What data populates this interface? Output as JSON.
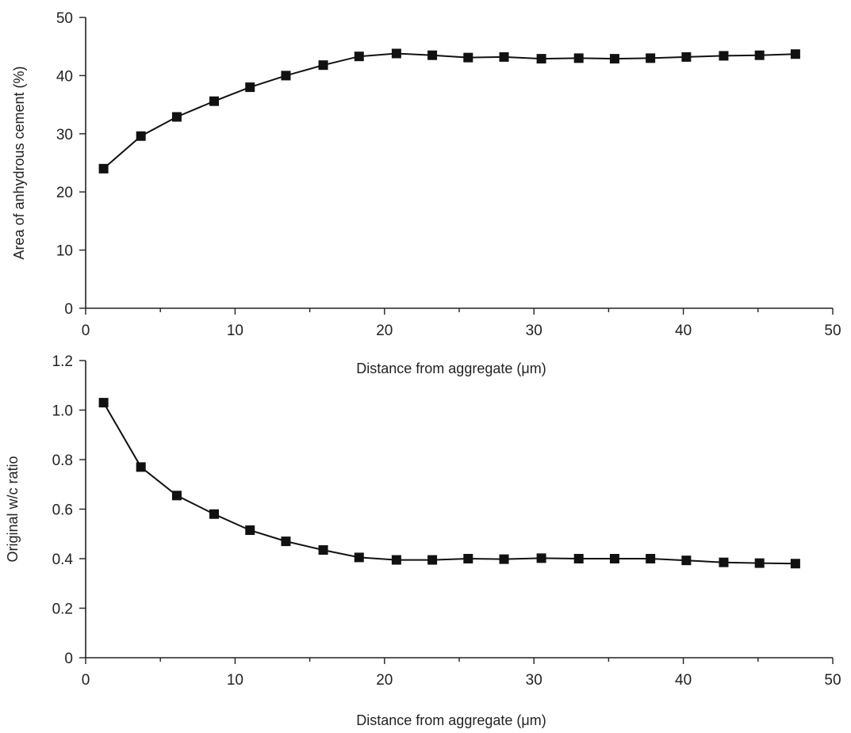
{
  "chart_data": [
    {
      "type": "line",
      "xlabel": "Distance from aggregate (μm)",
      "ylabel": "Area of anhydrous cement (%)",
      "xlim": [
        0,
        50
      ],
      "ylim": [
        0,
        50
      ],
      "xticks": [
        "0",
        "10",
        "20",
        "30",
        "40",
        "50"
      ],
      "yticks": [
        "0",
        "10",
        "20",
        "30",
        "40",
        "50"
      ],
      "grid": false,
      "marker": "square",
      "series": [
        {
          "x": [
            1.2,
            3.7,
            6.1,
            8.6,
            11.0,
            13.4,
            15.9,
            18.3,
            20.8,
            23.2,
            25.6,
            28.0,
            30.5,
            33.0,
            35.4,
            37.8,
            40.2,
            42.7,
            45.1,
            47.5
          ],
          "y": [
            24.0,
            29.6,
            32.9,
            35.6,
            38.0,
            40.0,
            41.8,
            43.3,
            43.8,
            43.5,
            43.1,
            43.2,
            42.9,
            43.0,
            42.9,
            43.0,
            43.2,
            43.4,
            43.5,
            43.7
          ]
        }
      ]
    },
    {
      "type": "line",
      "xlabel": "Distance from aggregate (μm)",
      "ylabel": "Original w/c ratio",
      "xlim": [
        0,
        50
      ],
      "ylim": [
        0,
        1.2
      ],
      "xticks": [
        "0",
        "10",
        "20",
        "30",
        "40",
        "50"
      ],
      "yticks": [
        "0",
        "0.2",
        "0.4",
        "0.6",
        "0.8",
        "1.0",
        "1.2"
      ],
      "grid": false,
      "marker": "square",
      "series": [
        {
          "x": [
            1.2,
            3.7,
            6.1,
            8.6,
            11.0,
            13.4,
            15.9,
            18.3,
            20.8,
            23.2,
            25.6,
            28.0,
            30.5,
            33.0,
            35.4,
            37.8,
            40.2,
            42.7,
            45.1,
            47.5
          ],
          "y": [
            1.03,
            0.77,
            0.655,
            0.58,
            0.515,
            0.47,
            0.435,
            0.405,
            0.395,
            0.395,
            0.4,
            0.398,
            0.402,
            0.4,
            0.4,
            0.4,
            0.393,
            0.385,
            0.382,
            0.38
          ]
        }
      ]
    }
  ]
}
